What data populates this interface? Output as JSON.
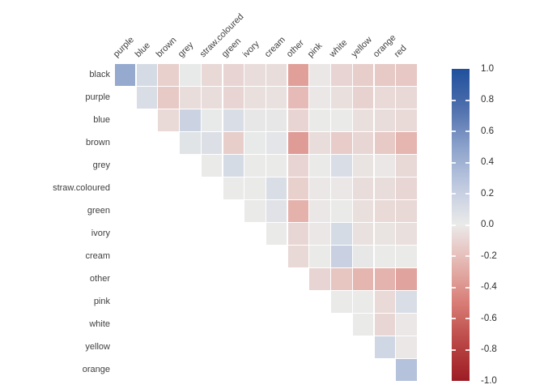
{
  "page": {
    "background": "#ffffff",
    "description": "Upper-triangular correlation heatmap of colour categories with diverging blue-red colorbar"
  },
  "chart_data": {
    "type": "heatmap",
    "title": "",
    "xlabel": "",
    "ylabel": "",
    "rows": [
      "black",
      "purple",
      "blue",
      "brown",
      "grey",
      "straw.coloured",
      "green",
      "ivory",
      "cream",
      "other",
      "pink",
      "white",
      "yellow",
      "orange"
    ],
    "columns": [
      "purple",
      "blue",
      "brown",
      "grey",
      "straw.coloured",
      "green",
      "ivory",
      "cream",
      "other",
      "pink",
      "white",
      "yellow",
      "orange",
      "red"
    ],
    "values": [
      [
        0.45,
        0.12,
        -0.12,
        0.01,
        -0.08,
        -0.1,
        -0.06,
        -0.06,
        -0.35,
        -0.01,
        -0.1,
        -0.13,
        -0.15,
        -0.16
      ],
      [
        null,
        0.1,
        -0.15,
        -0.06,
        -0.06,
        -0.1,
        -0.05,
        -0.04,
        -0.22,
        -0.01,
        -0.05,
        -0.11,
        -0.07,
        -0.08
      ],
      [
        null,
        null,
        -0.07,
        0.18,
        0.01,
        0.1,
        0.02,
        0.02,
        -0.1,
        0.0,
        0.0,
        -0.05,
        -0.06,
        -0.07
      ],
      [
        null,
        null,
        null,
        0.05,
        0.08,
        -0.13,
        0.01,
        0.04,
        -0.36,
        -0.06,
        -0.14,
        -0.09,
        -0.15,
        -0.25
      ],
      [
        null,
        null,
        null,
        null,
        0.0,
        0.12,
        0.0,
        0.0,
        -0.1,
        0.0,
        0.1,
        -0.03,
        -0.01,
        -0.08
      ],
      [
        null,
        null,
        null,
        null,
        null,
        0.0,
        0.0,
        0.1,
        -0.12,
        -0.01,
        -0.01,
        -0.06,
        -0.06,
        -0.09
      ],
      [
        null,
        null,
        null,
        null,
        null,
        null,
        0.0,
        0.06,
        -0.27,
        -0.01,
        0.0,
        -0.05,
        -0.07,
        -0.08
      ],
      [
        null,
        null,
        null,
        null,
        null,
        null,
        null,
        0.0,
        -0.09,
        -0.01,
        0.12,
        -0.04,
        -0.03,
        -0.05
      ],
      [
        null,
        null,
        null,
        null,
        null,
        null,
        null,
        null,
        -0.08,
        0.0,
        0.2,
        0.02,
        0.0,
        0.0
      ],
      [
        null,
        null,
        null,
        null,
        null,
        null,
        null,
        null,
        null,
        -0.1,
        -0.17,
        -0.25,
        -0.26,
        -0.33
      ],
      [
        null,
        null,
        null,
        null,
        null,
        null,
        null,
        null,
        null,
        null,
        0.0,
        0.0,
        -0.07,
        0.1
      ],
      [
        null,
        null,
        null,
        null,
        null,
        null,
        null,
        null,
        null,
        null,
        null,
        0.0,
        -0.09,
        -0.01
      ],
      [
        null,
        null,
        null,
        null,
        null,
        null,
        null,
        null,
        null,
        null,
        null,
        null,
        0.15,
        -0.01
      ],
      [
        null,
        null,
        null,
        null,
        null,
        null,
        null,
        null,
        null,
        null,
        null,
        null,
        null,
        0.3
      ]
    ],
    "value_range": [
      -1,
      1
    ],
    "grid": true,
    "grid_gap_color": "#ffffff",
    "legend_position": "right",
    "colorbar": {
      "tick_labels": [
        "1.0",
        "0.8",
        "0.6",
        "0.4",
        "0.2",
        "0.0",
        "-0.2",
        "-0.4",
        "-0.6",
        "-0.8",
        "-1.0"
      ],
      "tick_values": [
        1.0,
        0.8,
        0.6,
        0.4,
        0.2,
        0.0,
        -0.2,
        -0.4,
        -0.6,
        -0.8,
        -1.0
      ],
      "max_color": "#20509d",
      "mid_color": "#eaeae9",
      "min_color": "#9d1c24"
    },
    "colormap": {
      "positive_stops": [
        {
          "t": 0.0,
          "rgb": [
            234,
            234,
            233
          ]
        },
        {
          "t": 0.25,
          "rgb": [
            191,
            202,
            224
          ]
        },
        {
          "t": 0.5,
          "rgb": [
            140,
            162,
            203
          ]
        },
        {
          "t": 0.75,
          "rgb": [
            77,
            110,
            172
          ]
        },
        {
          "t": 1.0,
          "rgb": [
            32,
            80,
            157
          ]
        }
      ],
      "negative_stops": [
        {
          "t": 0.0,
          "rgb": [
            234,
            233,
            232
          ]
        },
        {
          "t": 0.25,
          "rgb": [
            229,
            181,
            176
          ]
        },
        {
          "t": 0.5,
          "rgb": [
            216,
            125,
            118
          ]
        },
        {
          "t": 0.75,
          "rgb": [
            186,
            70,
            68
          ]
        },
        {
          "t": 1.0,
          "rgb": [
            157,
            28,
            36
          ]
        }
      ]
    }
  }
}
